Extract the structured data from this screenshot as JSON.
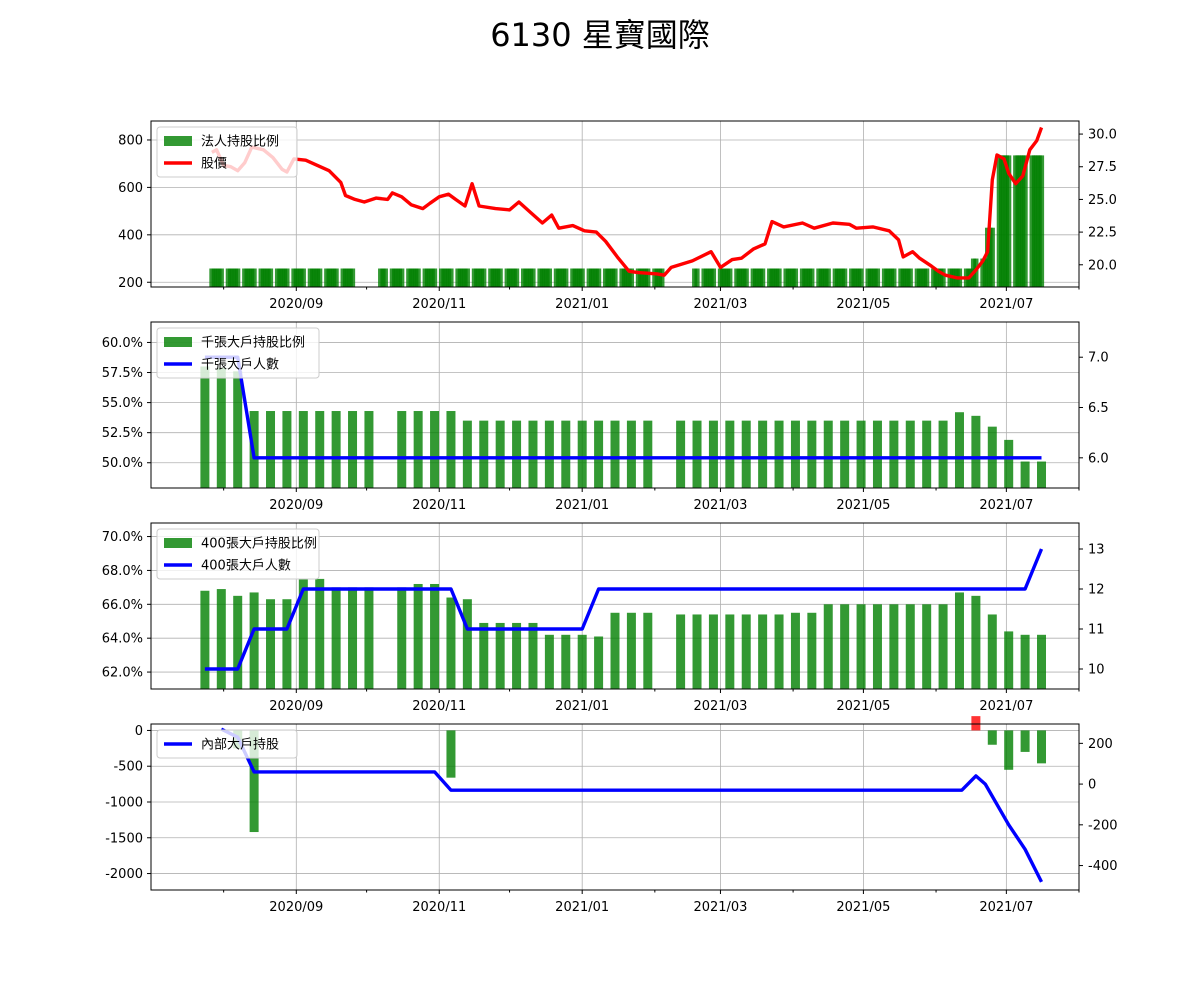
{
  "chart_title": "6130 星寶國際",
  "colors": {
    "bar": "#008000",
    "bar_neg_red": "#ff0000",
    "price_line": "#ff0000",
    "holder_line": "#0000ff",
    "grid": "#b0b0b0"
  },
  "x_ticks": [
    "2020/09",
    "2020/11",
    "2021/01",
    "2021/03",
    "2021/05",
    "2021/07"
  ],
  "chart_data": [
    {
      "type": "bar+line",
      "legend": [
        "法人持股比例",
        "股價"
      ],
      "left_ticks": [
        "200",
        "400",
        "600",
        "800"
      ],
      "left_ylim": [
        180,
        880
      ],
      "right_ticks": [
        "20.0",
        "22.5",
        "25.0",
        "27.5",
        "30.0"
      ],
      "right_ylim": [
        18.3,
        31.0
      ],
      "bar_first_date": "2020-07-27",
      "bar_last_date": "2021-07-16",
      "bar_breaks": [
        [
          "2020-09-28",
          "2020-10-06"
        ],
        [
          "2021-02-05",
          "2021-02-17"
        ]
      ],
      "bar_values_segments": [
        {
          "start": "2020-07-27",
          "end": "2021-06-16",
          "value": 258
        },
        {
          "start": "2021-06-17",
          "end": "2021-06-22",
          "value": 300
        },
        {
          "start": "2021-06-23",
          "end": "2021-06-25",
          "value": 430
        },
        {
          "start": "2021-06-28",
          "end": "2021-07-16",
          "value": 735
        }
      ],
      "price_series": [
        [
          "2020-07-27",
          28.6
        ],
        [
          "2020-07-29",
          28.8
        ],
        [
          "2020-08-01",
          27.6
        ],
        [
          "2020-08-04",
          27.5
        ],
        [
          "2020-08-07",
          27.2
        ],
        [
          "2020-08-10",
          27.8
        ],
        [
          "2020-08-13",
          29.0
        ],
        [
          "2020-08-18",
          28.8
        ],
        [
          "2020-08-22",
          28.2
        ],
        [
          "2020-08-26",
          27.3
        ],
        [
          "2020-08-28",
          27.1
        ],
        [
          "2020-08-31",
          28.1
        ],
        [
          "2020-09-05",
          28.0
        ],
        [
          "2020-09-10",
          27.6
        ],
        [
          "2020-09-15",
          27.2
        ],
        [
          "2020-09-20",
          26.3
        ],
        [
          "2020-09-22",
          25.3
        ],
        [
          "2020-09-26",
          25.0
        ],
        [
          "2020-09-30",
          24.8
        ],
        [
          "2020-10-05",
          25.1
        ],
        [
          "2020-10-10",
          25.0
        ],
        [
          "2020-10-12",
          25.5
        ],
        [
          "2020-10-16",
          25.2
        ],
        [
          "2020-10-20",
          24.6
        ],
        [
          "2020-10-25",
          24.3
        ],
        [
          "2020-10-28",
          24.7
        ],
        [
          "2020-11-01",
          25.2
        ],
        [
          "2020-11-05",
          25.4
        ],
        [
          "2020-11-08",
          25.0
        ],
        [
          "2020-11-12",
          24.5
        ],
        [
          "2020-11-15",
          26.2
        ],
        [
          "2020-11-18",
          24.5
        ],
        [
          "2020-11-25",
          24.3
        ],
        [
          "2020-12-01",
          24.2
        ],
        [
          "2020-12-05",
          24.8
        ],
        [
          "2020-12-10",
          24.0
        ],
        [
          "2020-12-15",
          23.2
        ],
        [
          "2020-12-19",
          23.8
        ],
        [
          "2020-12-22",
          22.8
        ],
        [
          "2020-12-28",
          23.0
        ],
        [
          "2021-01-02",
          22.6
        ],
        [
          "2021-01-07",
          22.5
        ],
        [
          "2021-01-11",
          21.8
        ],
        [
          "2021-01-16",
          20.6
        ],
        [
          "2021-01-21",
          19.5
        ],
        [
          "2021-01-25",
          19.4
        ],
        [
          "2021-02-02",
          19.3
        ],
        [
          "2021-02-05",
          19.2
        ],
        [
          "2021-02-08",
          19.8
        ],
        [
          "2021-02-17",
          20.3
        ],
        [
          "2021-02-25",
          21.0
        ],
        [
          "2021-03-01",
          19.8
        ],
        [
          "2021-03-06",
          20.4
        ],
        [
          "2021-03-10",
          20.5
        ],
        [
          "2021-03-15",
          21.2
        ],
        [
          "2021-03-20",
          21.6
        ],
        [
          "2021-03-23",
          23.3
        ],
        [
          "2021-03-28",
          22.9
        ],
        [
          "2021-04-05",
          23.2
        ],
        [
          "2021-04-10",
          22.8
        ],
        [
          "2021-04-18",
          23.2
        ],
        [
          "2021-04-25",
          23.1
        ],
        [
          "2021-04-28",
          22.8
        ],
        [
          "2021-05-05",
          22.9
        ],
        [
          "2021-05-12",
          22.6
        ],
        [
          "2021-05-16",
          21.9
        ],
        [
          "2021-05-18",
          20.6
        ],
        [
          "2021-05-22",
          21.0
        ],
        [
          "2021-05-25",
          20.5
        ],
        [
          "2021-05-30",
          19.9
        ],
        [
          "2021-06-02",
          19.5
        ],
        [
          "2021-06-05",
          19.2
        ],
        [
          "2021-06-10",
          19.0
        ],
        [
          "2021-06-15",
          19.0
        ],
        [
          "2021-06-18",
          19.6
        ],
        [
          "2021-06-21",
          20.3
        ],
        [
          "2021-06-23",
          21.0
        ],
        [
          "2021-06-25",
          26.5
        ],
        [
          "2021-06-27",
          28.4
        ],
        [
          "2021-06-30",
          28.1
        ],
        [
          "2021-07-02",
          27.0
        ],
        [
          "2021-07-05",
          26.2
        ],
        [
          "2021-07-08",
          26.8
        ],
        [
          "2021-07-11",
          28.8
        ],
        [
          "2021-07-14",
          29.5
        ],
        [
          "2021-07-16",
          30.5
        ]
      ]
    },
    {
      "type": "bar+line",
      "legend": [
        "千張大戶持股比例",
        "千張大戶人數"
      ],
      "left_ticks": [
        "50.0%",
        "52.5%",
        "55.0%",
        "57.5%",
        "60.0%"
      ],
      "left_ylim": [
        47.9,
        61.7
      ],
      "right_ticks": [
        "6.0",
        "6.5",
        "7.0"
      ],
      "right_ylim": [
        5.7,
        7.35
      ],
      "weeks_first": "2020-07-24",
      "weeks_count": 52,
      "missing_weeks": [
        11,
        28
      ],
      "bar_values": [
        58.0,
        57.9,
        57.6,
        54.3,
        54.3,
        54.3,
        54.3,
        54.3,
        54.3,
        54.3,
        54.3,
        null,
        54.3,
        54.3,
        54.3,
        54.3,
        53.5,
        53.5,
        53.5,
        53.5,
        53.5,
        53.5,
        53.5,
        53.5,
        53.5,
        53.5,
        53.5,
        53.5,
        null,
        53.5,
        53.5,
        53.5,
        53.5,
        53.5,
        53.5,
        53.5,
        53.5,
        53.5,
        53.5,
        53.5,
        53.5,
        53.5,
        53.5,
        53.5,
        53.5,
        53.5,
        54.2,
        53.9,
        53.0,
        51.9,
        50.1,
        50.1
      ],
      "line_values": [
        7,
        7,
        7,
        6,
        6,
        6,
        6,
        6,
        6,
        6,
        6,
        6,
        6,
        6,
        6,
        6,
        6,
        6,
        6,
        6,
        6,
        6,
        6,
        6,
        6,
        6,
        6,
        6,
        6,
        6,
        6,
        6,
        6,
        6,
        6,
        6,
        6,
        6,
        6,
        6,
        6,
        6,
        6,
        6,
        6,
        6,
        6,
        6,
        6,
        6,
        6,
        6
      ]
    },
    {
      "type": "bar+line",
      "legend": [
        "400張大戶持股比例",
        "400張大戶人數"
      ],
      "left_ticks": [
        "62.0%",
        "64.0%",
        "66.0%",
        "68.0%",
        "70.0%"
      ],
      "left_ylim": [
        61.0,
        70.8
      ],
      "right_ticks": [
        "10",
        "11",
        "12",
        "13"
      ],
      "right_ylim": [
        9.5,
        13.65
      ],
      "weeks_first": "2020-07-24",
      "weeks_count": 52,
      "bar_values": [
        66.8,
        66.9,
        66.5,
        66.7,
        66.3,
        66.3,
        67.5,
        67.5,
        67.0,
        67.0,
        67.0,
        null,
        67.0,
        67.2,
        67.2,
        66.4,
        66.3,
        64.9,
        64.9,
        64.9,
        64.9,
        64.2,
        64.2,
        64.2,
        64.1,
        65.5,
        65.5,
        65.5,
        null,
        65.4,
        65.4,
        65.4,
        65.4,
        65.4,
        65.4,
        65.4,
        65.5,
        65.5,
        66.0,
        66.0,
        66.0,
        66.0,
        66.0,
        66.0,
        66.0,
        66.0,
        66.7,
        66.5,
        65.4,
        64.4,
        64.2,
        64.2
      ],
      "line_values": [
        10,
        10,
        10,
        11,
        11,
        11,
        12,
        12,
        12,
        12,
        12,
        12,
        12,
        12,
        12,
        12,
        11,
        11,
        11,
        11,
        11,
        11,
        11,
        11,
        12,
        12,
        12,
        12,
        12,
        12,
        12,
        12,
        12,
        12,
        12,
        12,
        12,
        12,
        12,
        12,
        12,
        12,
        12,
        12,
        12,
        12,
        12,
        12,
        12,
        12,
        12,
        13
      ]
    },
    {
      "type": "bar+line",
      "legend": [
        "內部大戶持股"
      ],
      "left_ticks": [
        "-2000",
        "-1500",
        "-1000",
        "-500",
        "0"
      ],
      "left_ylim": [
        -2230,
        90
      ],
      "right_ticks": [
        "-400",
        "-200",
        "0",
        "200"
      ],
      "right_ylim": [
        -520,
        295
      ],
      "bar_values_by_date": [
        [
          "2020-08-07",
          -250
        ],
        [
          "2020-08-14",
          -1420
        ],
        [
          "2020-11-06",
          -660
        ],
        [
          "2021-06-18",
          200
        ],
        [
          "2021-06-25",
          -200
        ],
        [
          "2021-07-02",
          -550
        ],
        [
          "2021-07-09",
          -300
        ],
        [
          "2021-07-16",
          -460
        ]
      ],
      "line_series": [
        [
          "2020-07-31",
          270
        ],
        [
          "2020-08-07",
          230
        ],
        [
          "2020-08-14",
          60
        ],
        [
          "2020-10-30",
          60
        ],
        [
          "2020-11-06",
          -30
        ],
        [
          "2021-06-12",
          -30
        ],
        [
          "2021-06-18",
          40
        ],
        [
          "2021-06-22",
          0
        ],
        [
          "2021-07-02",
          -200
        ],
        [
          "2021-07-09",
          -320
        ],
        [
          "2021-07-16",
          -480
        ]
      ]
    }
  ]
}
